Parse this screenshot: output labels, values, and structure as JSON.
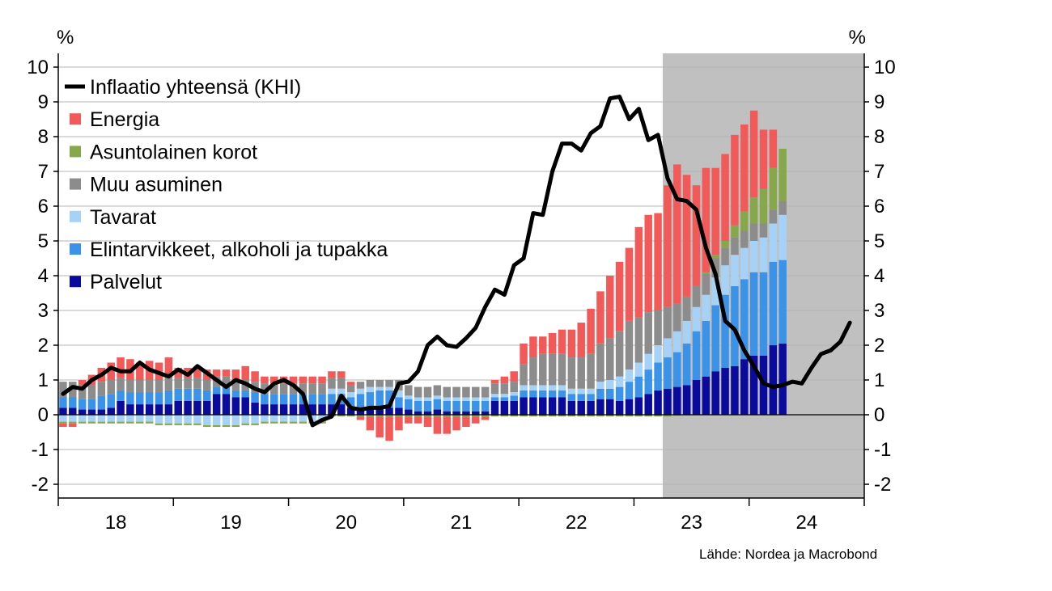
{
  "chart_data": {
    "type": "bar",
    "stacked": true,
    "title": "",
    "y_unit_left": "%",
    "y_unit_right": "%",
    "ylim": [
      -2.3,
      10.4
    ],
    "y_ticks": [
      -2,
      -1,
      0,
      1,
      2,
      3,
      4,
      5,
      6,
      7,
      8,
      9,
      10
    ],
    "y_tick_labels": [
      "-2",
      "-1",
      "0",
      "1",
      "2",
      "3",
      "4",
      "5",
      "6",
      "7",
      "8",
      "9",
      "10"
    ],
    "x_tick_labels": [
      "18",
      "19",
      "20",
      "21",
      "22",
      "23",
      "24"
    ],
    "x_start": "2018-01",
    "forecast_start": "2023-04",
    "grid": true,
    "legend_position": "top-left",
    "colors": {
      "line": "#000000",
      "Energia": "#f25a5a",
      "Asuntolainen korot": "#86a84a",
      "Muu asuminen": "#8c8c8c",
      "Tavarat": "#a6d2f7",
      "Elintarvikkeet, alkoholi ja tupakka": "#3a93e8",
      "Palvelut": "#0a0a9c",
      "forecast_shade": "#c0c0c0",
      "grid": "#b4b4b4"
    },
    "series": [
      {
        "name": "Palvelut",
        "values": [
          0.2,
          0.2,
          0.15,
          0.15,
          0.15,
          0.2,
          0.4,
          0.3,
          0.3,
          0.3,
          0.3,
          0.3,
          0.4,
          0.4,
          0.4,
          0.4,
          0.6,
          0.6,
          0.5,
          0.5,
          0.35,
          0.3,
          0.3,
          0.3,
          0.3,
          0.3,
          0.3,
          0.3,
          0.3,
          0.3,
          0.2,
          0.2,
          0.15,
          0.2,
          0.2,
          0.2,
          0.15,
          0.1,
          0.1,
          0.15,
          0.1,
          0.1,
          0.1,
          0.1,
          0.1,
          0.4,
          0.4,
          0.4,
          0.5,
          0.5,
          0.5,
          0.5,
          0.5,
          0.4,
          0.4,
          0.4,
          0.45,
          0.45,
          0.4,
          0.45,
          0.5,
          0.6,
          0.7,
          0.75,
          0.8,
          0.85,
          1.0,
          1.1,
          1.25,
          1.35,
          1.4,
          1.6,
          1.7,
          1.7,
          2.0,
          2.05
        ]
      },
      {
        "name": "Elintarvikkeet, alkoholi ja tupakka",
        "values": [
          0.3,
          0.3,
          0.3,
          0.3,
          0.4,
          0.4,
          0.3,
          0.35,
          0.35,
          0.35,
          0.35,
          0.4,
          0.35,
          0.35,
          0.35,
          0.3,
          0.2,
          0.2,
          0.2,
          0.2,
          0.3,
          0.3,
          0.3,
          0.3,
          0.3,
          0.3,
          0.3,
          0.3,
          0.3,
          0.3,
          0.3,
          0.4,
          0.5,
          0.5,
          0.5,
          0.3,
          0.3,
          0.3,
          0.3,
          0.3,
          0.3,
          0.3,
          0.3,
          0.3,
          0.3,
          0.1,
          0.1,
          0.15,
          0.2,
          0.2,
          0.2,
          0.2,
          0.2,
          0.2,
          0.2,
          0.2,
          0.3,
          0.3,
          0.4,
          0.5,
          0.6,
          0.7,
          0.8,
          0.9,
          1.0,
          1.2,
          1.4,
          1.6,
          1.9,
          2.1,
          2.3,
          2.3,
          2.4,
          2.4,
          2.4,
          2.4
        ]
      },
      {
        "name": "Tavarat",
        "values": [
          -0.2,
          -0.2,
          -0.2,
          -0.2,
          -0.2,
          -0.2,
          -0.2,
          -0.2,
          -0.2,
          -0.2,
          -0.25,
          -0.25,
          -0.25,
          -0.25,
          -0.25,
          -0.3,
          -0.3,
          -0.3,
          -0.3,
          -0.25,
          -0.25,
          -0.2,
          -0.2,
          -0.2,
          -0.2,
          -0.2,
          -0.2,
          -0.2,
          0.15,
          0.15,
          0.15,
          0.15,
          0.15,
          0.1,
          0.1,
          0.2,
          0.1,
          0.1,
          0.1,
          0.1,
          0.1,
          0.1,
          0.1,
          0.1,
          0.1,
          0.1,
          0.1,
          0.1,
          0.15,
          0.15,
          0.15,
          0.15,
          0.15,
          0.15,
          0.15,
          0.15,
          0.2,
          0.25,
          0.3,
          0.35,
          0.4,
          0.45,
          0.5,
          0.55,
          0.6,
          0.65,
          0.7,
          0.75,
          0.8,
          0.85,
          0.9,
          0.9,
          0.9,
          1.0,
          1.1,
          1.3
        ]
      },
      {
        "name": "Muu asuminen",
        "values": [
          0.45,
          0.45,
          0.4,
          0.4,
          0.4,
          0.4,
          0.35,
          0.35,
          0.35,
          0.35,
          0.35,
          0.35,
          0.3,
          0.3,
          0.3,
          0.3,
          0.3,
          0.3,
          0.3,
          0.3,
          0.3,
          0.3,
          0.3,
          0.3,
          0.3,
          0.3,
          0.3,
          0.3,
          0.3,
          0.3,
          0.2,
          0.2,
          0.2,
          0.2,
          0.2,
          0.3,
          0.3,
          0.3,
          0.3,
          0.3,
          0.3,
          0.3,
          0.3,
          0.3,
          0.3,
          0.3,
          0.3,
          0.3,
          0.6,
          0.8,
          0.9,
          0.9,
          0.9,
          0.9,
          0.9,
          1.0,
          1.1,
          1.2,
          1.3,
          1.4,
          1.3,
          1.2,
          1.0,
          0.9,
          0.8,
          0.7,
          0.6,
          0.6,
          0.55,
          0.5,
          0.5,
          0.5,
          0.5,
          0.4,
          0.4,
          0.4
        ]
      },
      {
        "name": "Asuntolainen korot",
        "values": [
          -0.05,
          -0.05,
          -0.05,
          -0.05,
          -0.05,
          -0.05,
          -0.05,
          -0.05,
          -0.05,
          -0.05,
          -0.05,
          -0.05,
          -0.05,
          -0.05,
          -0.05,
          -0.05,
          -0.05,
          -0.05,
          -0.05,
          -0.05,
          -0.05,
          -0.05,
          -0.05,
          -0.05,
          -0.05,
          -0.05,
          -0.05,
          -0.05,
          -0.05,
          -0.05,
          -0.05,
          -0.05,
          -0.05,
          -0.05,
          -0.05,
          -0.05,
          -0.05,
          -0.05,
          -0.05,
          -0.05,
          -0.05,
          -0.05,
          -0.05,
          -0.05,
          -0.05,
          -0.05,
          -0.05,
          -0.05,
          -0.05,
          -0.05,
          -0.05,
          -0.05,
          -0.05,
          -0.05,
          -0.05,
          -0.05,
          -0.05,
          -0.05,
          -0.05,
          -0.05,
          -0.05,
          -0.05,
          -0.05,
          -0.05,
          -0.03,
          -0.02,
          0.0,
          0.05,
          0.1,
          0.2,
          0.35,
          0.55,
          0.75,
          1.0,
          1.2,
          1.5
        ]
      },
      {
        "name": "Energia",
        "values": [
          -0.1,
          -0.1,
          0.15,
          0.3,
          0.4,
          0.5,
          0.6,
          0.6,
          0.5,
          0.55,
          0.5,
          0.6,
          0.3,
          0.3,
          0.3,
          0.3,
          0.2,
          0.2,
          0.3,
          0.4,
          0.3,
          0.2,
          0.2,
          0.2,
          0.2,
          0.2,
          0.2,
          0.2,
          0.2,
          0.2,
          0.1,
          -0.1,
          -0.4,
          -0.6,
          -0.7,
          -0.4,
          -0.2,
          -0.2,
          -0.3,
          -0.5,
          -0.5,
          -0.4,
          -0.3,
          -0.2,
          -0.1,
          0.1,
          0.2,
          0.3,
          0.6,
          0.6,
          0.5,
          0.6,
          0.7,
          0.8,
          1.0,
          1.3,
          1.5,
          1.8,
          2.0,
          2.1,
          2.6,
          2.8,
          2.8,
          3.5,
          4.0,
          3.5,
          2.9,
          3.0,
          2.5,
          2.5,
          2.6,
          2.5,
          2.5,
          1.7,
          1.1,
          0.0
        ]
      }
    ],
    "line": {
      "name": "Inflaatio yhteensä (KHI)",
      "values": [
        0.6,
        0.8,
        0.75,
        1.0,
        1.15,
        1.35,
        1.25,
        1.25,
        1.5,
        1.3,
        1.2,
        1.1,
        1.3,
        1.15,
        1.4,
        1.2,
        1.0,
        0.8,
        1.0,
        0.9,
        0.75,
        0.65,
        0.9,
        1.0,
        0.85,
        0.6,
        -0.3,
        -0.15,
        -0.05,
        0.55,
        0.2,
        0.15,
        0.2,
        0.2,
        0.25,
        0.9,
        0.95,
        1.25,
        2.0,
        2.25,
        2.0,
        1.95,
        2.2,
        2.5,
        3.1,
        3.6,
        3.45,
        4.3,
        4.5,
        5.8,
        5.75,
        7.0,
        7.8,
        7.8,
        7.6,
        8.1,
        8.3,
        9.1,
        9.15,
        8.5,
        8.8,
        7.9,
        8.05,
        6.8,
        6.2,
        6.15,
        5.9,
        4.8,
        4.05,
        2.7,
        2.45,
        1.85,
        1.4,
        0.9,
        0.8,
        0.85,
        0.95,
        0.9,
        1.35,
        1.75,
        1.85,
        2.1,
        2.65
      ]
    }
  },
  "legend": [
    {
      "label": "Inflaatio yhteensä (KHI)",
      "color": "#000000",
      "kind": "line"
    },
    {
      "label": "Energia",
      "color": "#f25a5a",
      "kind": "square"
    },
    {
      "label": "Asuntolainen korot",
      "color": "#86a84a",
      "kind": "square"
    },
    {
      "label": "Muu asuminen",
      "color": "#8c8c8c",
      "kind": "square"
    },
    {
      "label": "Tavarat",
      "color": "#a6d2f7",
      "kind": "square"
    },
    {
      "label": "Elintarvikkeet, alkoholi ja tupakka",
      "color": "#3a93e8",
      "kind": "square"
    },
    {
      "label": "Palvelut",
      "color": "#0a0a9c",
      "kind": "square"
    }
  ],
  "source": "Lähde: Nordea ja Macrobond"
}
